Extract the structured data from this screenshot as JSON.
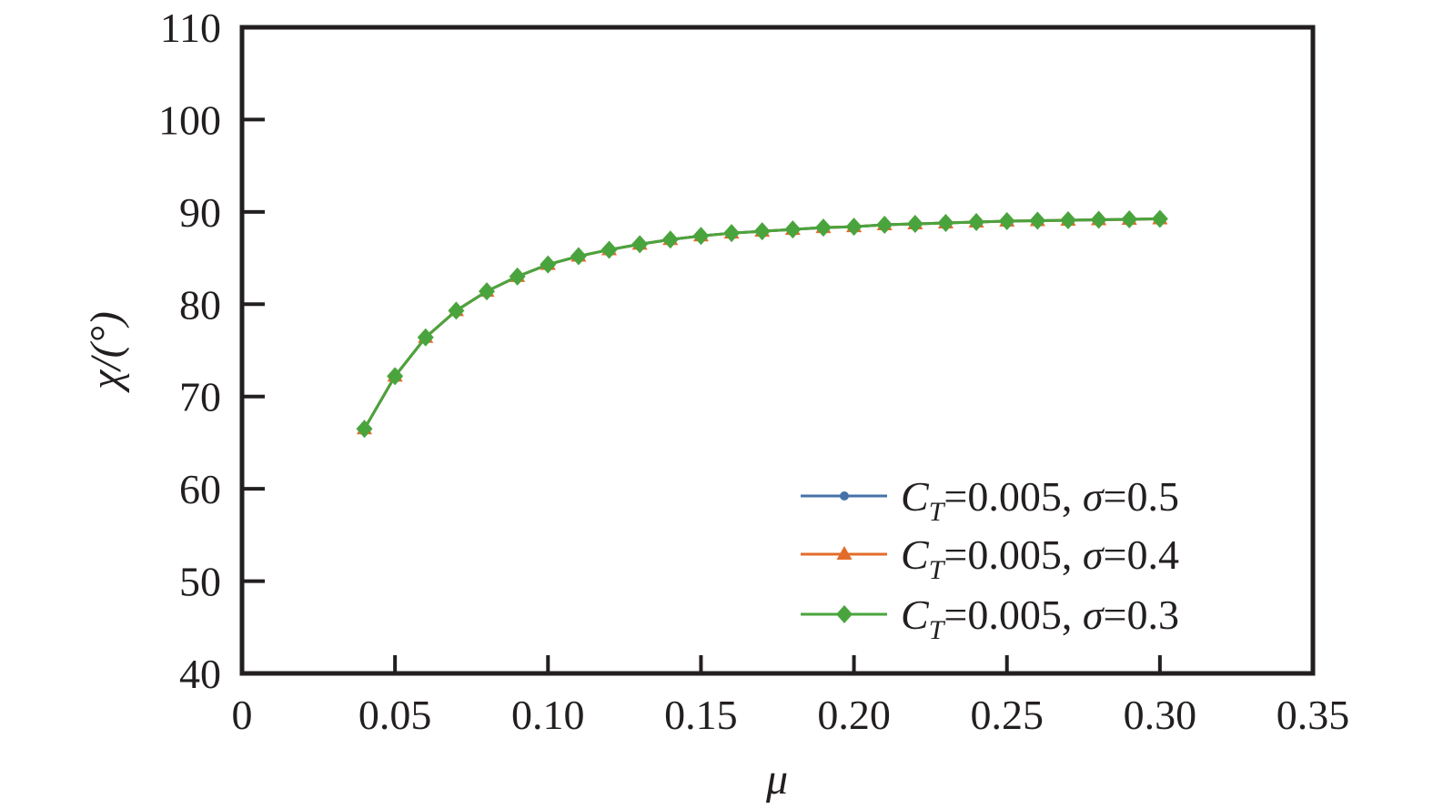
{
  "chart_data": {
    "type": "line",
    "title": "",
    "xlabel": "μ",
    "ylabel": "χ/(°)",
    "xlim": [
      0,
      0.35
    ],
    "ylim": [
      40,
      110
    ],
    "x_ticks": [
      0,
      0.05,
      0.1,
      0.15,
      0.2,
      0.25,
      0.3,
      0.35
    ],
    "x_tick_labels": [
      "0",
      "0.05",
      "0.10",
      "0.15",
      "0.20",
      "0.25",
      "0.30",
      "0.35"
    ],
    "y_ticks": [
      40,
      50,
      60,
      70,
      80,
      90,
      100,
      110
    ],
    "y_tick_labels": [
      "40",
      "50",
      "60",
      "70",
      "80",
      "90",
      "100",
      "110"
    ],
    "grid": false,
    "legend_position": "bottom-right",
    "x": [
      0.04,
      0.05,
      0.06,
      0.07,
      0.08,
      0.09,
      0.1,
      0.11,
      0.12,
      0.13,
      0.14,
      0.15,
      0.16,
      0.17,
      0.18,
      0.19,
      0.2,
      0.21,
      0.22,
      0.23,
      0.24,
      0.25,
      0.26,
      0.27,
      0.28,
      0.29,
      0.3
    ],
    "series": [
      {
        "name": "C_T=0.005, σ=0.5",
        "legend": {
          "c": "C",
          "sub": "T",
          "rest": "=0.005, ",
          "sigma": "σ",
          "val": "=0.5"
        },
        "color": "#4472a8",
        "marker": "circle",
        "values": [
          66.5,
          72.2,
          76.4,
          79.3,
          81.4,
          83.0,
          84.3,
          85.2,
          85.9,
          86.5,
          87.0,
          87.4,
          87.7,
          87.9,
          88.1,
          88.3,
          88.4,
          88.6,
          88.7,
          88.8,
          88.9,
          89.0,
          89.05,
          89.1,
          89.15,
          89.2,
          89.25
        ]
      },
      {
        "name": "C_T=0.005, σ=0.4",
        "legend": {
          "c": "C",
          "sub": "T",
          "rest": "=0.005, ",
          "sigma": "σ",
          "val": "=0.4"
        },
        "color": "#e36c2b",
        "marker": "triangle",
        "values": [
          66.5,
          72.2,
          76.4,
          79.3,
          81.4,
          83.0,
          84.3,
          85.2,
          85.9,
          86.5,
          87.0,
          87.4,
          87.7,
          87.9,
          88.1,
          88.3,
          88.4,
          88.6,
          88.7,
          88.8,
          88.9,
          89.0,
          89.05,
          89.1,
          89.15,
          89.2,
          89.25
        ]
      },
      {
        "name": "C_T=0.005, σ=0.3",
        "legend": {
          "c": "C",
          "sub": "T",
          "rest": "=0.005, ",
          "sigma": "σ",
          "val": "=0.3"
        },
        "color": "#4aa43d",
        "marker": "diamond",
        "values": [
          66.5,
          72.2,
          76.4,
          79.3,
          81.4,
          83.0,
          84.3,
          85.2,
          85.9,
          86.5,
          87.0,
          87.4,
          87.7,
          87.9,
          88.1,
          88.3,
          88.4,
          88.6,
          88.7,
          88.8,
          88.9,
          89.0,
          89.05,
          89.1,
          89.15,
          89.2,
          89.25
        ]
      }
    ]
  }
}
